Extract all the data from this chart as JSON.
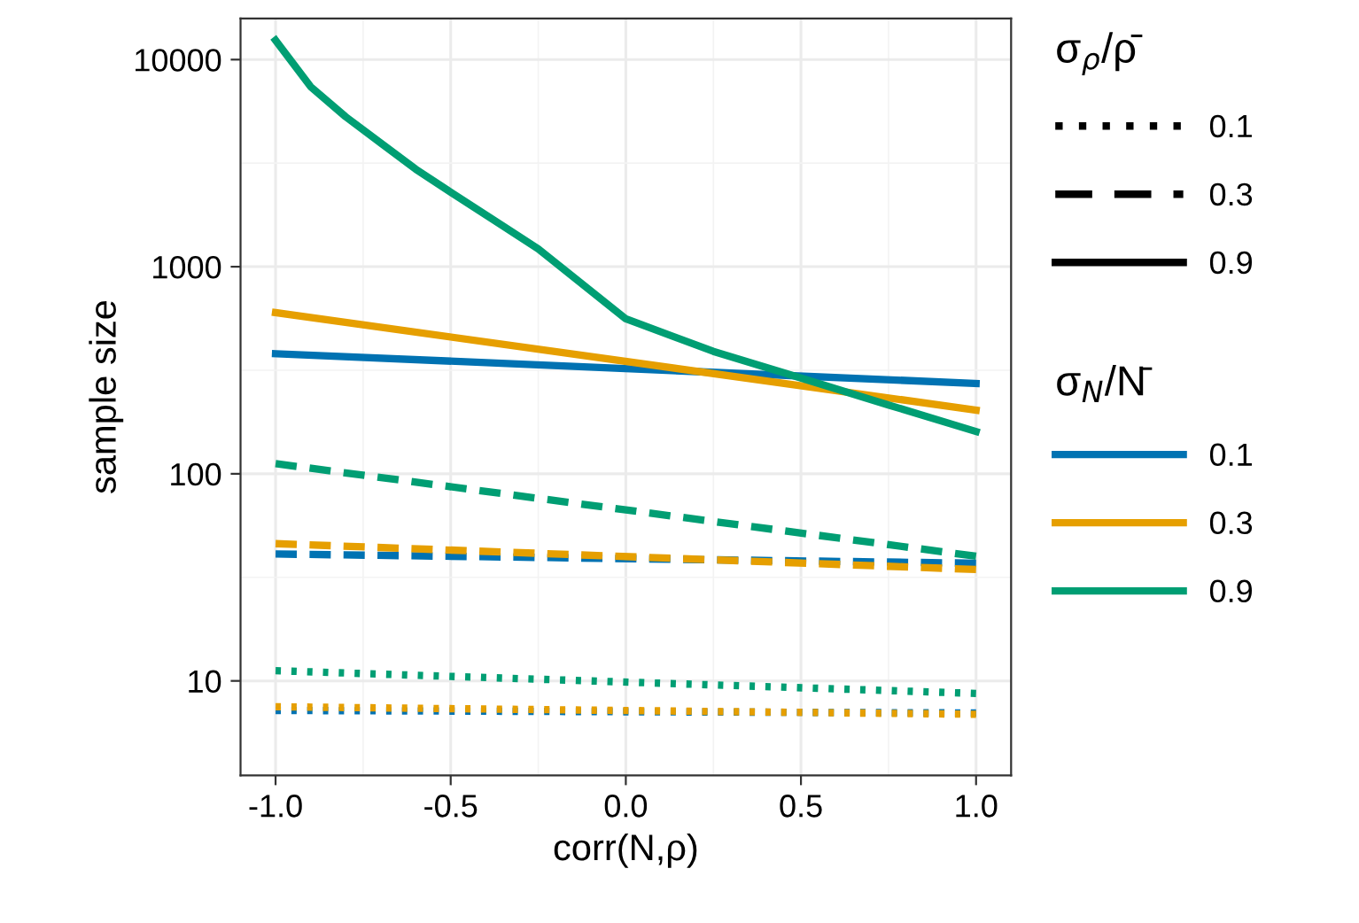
{
  "chart_data": {
    "type": "line",
    "xlabel": "corr(N,ρ)",
    "ylabel": "sample size",
    "log": "y",
    "xlim": [
      -1.1,
      1.1
    ],
    "xticks": [
      {
        "value": -1,
        "label": "-1.0"
      },
      {
        "value": -0.5,
        "label": "-0.5"
      },
      {
        "value": 0,
        "label": "0.0"
      },
      {
        "value": 0.5,
        "label": "0.5"
      },
      {
        "value": 1,
        "label": "1.0"
      }
    ],
    "ylim": [
      3.5,
      15800
    ],
    "yticks": [
      10,
      100,
      1000,
      10000
    ],
    "grid": true,
    "legend": "right",
    "legend_title": [
      "σ$_{ρ}$/ρ̄",
      "σ$_{N}$/N̄"
    ],
    "annotations": [
      "0.1",
      "0.3",
      "0.9"
    ],
    "series": [
      {
        "name": "0.1",
        "color": "#0072b2",
        "line_style": "solid",
        "x": [
          -1,
          1
        ],
        "values": [
          380,
          273
        ]
      },
      {
        "name": "0.3",
        "color": "#e69f00",
        "line_style": "solid",
        "x": [
          -1,
          1
        ],
        "values": [
          600,
          203
        ]
      },
      {
        "name": "0.9",
        "color": "#009e73",
        "line_style": "solid",
        "x": [
          -1,
          -0.9,
          -0.8,
          -0.7,
          -0.6,
          -0.5,
          -0.25,
          0,
          0.25,
          0.5,
          0.75,
          1
        ],
        "values": [
          12400,
          7400,
          5300,
          3960,
          2960,
          2290,
          1220,
          560,
          390,
          290,
          215,
          160
        ]
      },
      {
        "color": "#0072b2",
        "line_style": "dashed",
        "x": [
          -1,
          1
        ],
        "values": [
          41,
          37
        ]
      },
      {
        "color": "#e69f00",
        "line_style": "dashed",
        "x": [
          -1,
          1
        ],
        "values": [
          46,
          34.5
        ]
      },
      {
        "color": "#009e73",
        "line_style": "dashed",
        "x": [
          -1,
          1
        ],
        "values": [
          112,
          40
        ]
      },
      {
        "color": "#0072b2",
        "line_style": "dotted",
        "x": [
          -1,
          1
        ],
        "values": [
          7.2,
          7.0
        ]
      },
      {
        "color": "#e69f00",
        "line_style": "dotted",
        "x": [
          -1,
          1
        ],
        "values": [
          7.5,
          6.9
        ]
      },
      {
        "color": "#009e73",
        "line_style": "dotted",
        "x": [
          -1,
          1
        ],
        "values": [
          11.2,
          8.7
        ]
      }
    ]
  }
}
